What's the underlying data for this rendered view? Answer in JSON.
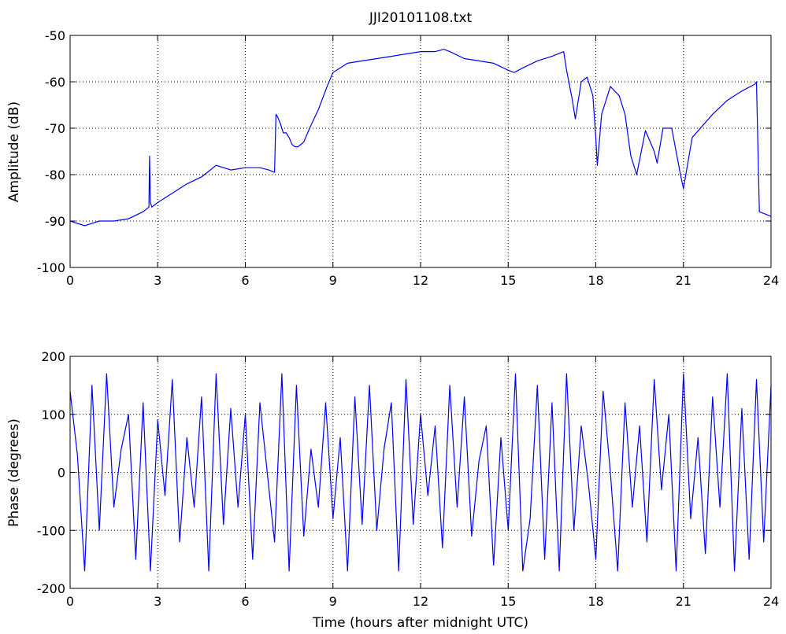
{
  "figure": {
    "title": "JJI20101108.txt",
    "colors": {
      "line": "#0000ff",
      "axes": "#000000",
      "grid": "#000000",
      "background": "#ffffff"
    }
  },
  "chart_data": [
    {
      "type": "line",
      "title": "JJI20101108.txt",
      "xlabel": "",
      "ylabel": "Amplitude (dB)",
      "xlim": [
        0,
        24
      ],
      "ylim": [
        -100,
        -50
      ],
      "xticks": [
        "0",
        "3",
        "6",
        "9",
        "12",
        "15",
        "18",
        "21",
        "24"
      ],
      "yticks": [
        "-100",
        "-90",
        "-80",
        "-70",
        "-60",
        "-50"
      ],
      "grid": true,
      "series": [
        {
          "x": [
            0,
            0.5,
            1,
            1.5,
            2,
            2.5,
            2.7,
            2.72,
            2.75,
            2.8,
            3,
            3.5,
            4,
            4.5,
            4.8,
            5,
            5.5,
            6,
            6.5,
            6.8,
            7.0,
            7.05,
            7.1,
            7.2,
            7.3,
            7.4,
            7.5,
            7.6,
            7.7,
            7.8,
            8.0,
            8.2,
            8.5,
            8.8,
            9,
            9.5,
            10,
            10.5,
            11,
            11.5,
            12,
            12.5,
            12.8,
            13,
            13.5,
            14,
            14.5,
            15,
            15.2,
            15.5,
            16,
            16.5,
            16.7,
            16.9,
            17.0,
            17.2,
            17.3,
            17.5,
            17.7,
            17.9,
            18.0,
            18.05,
            18.2,
            18.5,
            18.8,
            19.0,
            19.2,
            19.4,
            19.7,
            20.0,
            20.1,
            20.3,
            20.6,
            20.9,
            21.0,
            21.3,
            22,
            22.5,
            23,
            23.45,
            23.5,
            23.6,
            24
          ],
          "values": [
            -90,
            -91,
            -90,
            -90,
            -89.5,
            -88,
            -87,
            -76,
            -86,
            -87,
            -86,
            -84,
            -82,
            -80.5,
            -79,
            -78,
            -79,
            -78.5,
            -78.5,
            -79,
            -79.5,
            -67,
            -67.5,
            -69,
            -71,
            -71,
            -72,
            -73.5,
            -74,
            -74,
            -73,
            -70,
            -66,
            -61,
            -58,
            -56,
            -55.5,
            -55,
            -54.5,
            -54,
            -53.5,
            -53.5,
            -53,
            -53.5,
            -55,
            -55.5,
            -56,
            -57.5,
            -58,
            -57,
            -55.5,
            -54.5,
            -54,
            -53.5,
            -57.5,
            -64,
            -68,
            -60,
            -59,
            -63,
            -72,
            -78,
            -67,
            -61,
            -63,
            -67,
            -76,
            -80,
            -70.5,
            -75,
            -77.5,
            -70,
            -70,
            -80,
            -83,
            -72,
            -67,
            -64,
            -62,
            -60.5,
            -60,
            -88,
            -89
          ]
        }
      ]
    },
    {
      "type": "line",
      "title": "",
      "xlabel": "Time (hours after midnight UTC)",
      "ylabel": "Phase (degrees)",
      "xlim": [
        0,
        24
      ],
      "ylim": [
        -200,
        200
      ],
      "xticks": [
        "0",
        "3",
        "6",
        "9",
        "12",
        "15",
        "18",
        "21",
        "24"
      ],
      "yticks": [
        "-200",
        "-100",
        "0",
        "100",
        "200"
      ],
      "grid": true,
      "series": [
        {
          "x": [
            0,
            0.25,
            0.5,
            0.75,
            1,
            1.25,
            1.5,
            1.75,
            2,
            2.25,
            2.5,
            2.75,
            3,
            3.25,
            3.5,
            3.75,
            4,
            4.25,
            4.5,
            4.75,
            5,
            5.25,
            5.5,
            5.75,
            6,
            6.25,
            6.5,
            6.75,
            7,
            7.25,
            7.5,
            7.75,
            8,
            8.25,
            8.5,
            8.75,
            9,
            9.25,
            9.5,
            9.75,
            10,
            10.25,
            10.5,
            10.75,
            11,
            11.25,
            11.5,
            11.75,
            12,
            12.25,
            12.5,
            12.75,
            13,
            13.25,
            13.5,
            13.75,
            14,
            14.25,
            14.5,
            14.75,
            15,
            15.25,
            15.5,
            15.75,
            16,
            16.25,
            16.5,
            16.75,
            17,
            17.25,
            17.5,
            17.75,
            18,
            18.25,
            18.5,
            18.75,
            19,
            19.25,
            19.5,
            19.75,
            20,
            20.25,
            20.5,
            20.75,
            21,
            21.25,
            21.5,
            21.75,
            22,
            22.25,
            22.5,
            22.75,
            23,
            23.25,
            23.5,
            23.75,
            24
          ],
          "values": [
            140,
            30,
            -170,
            150,
            -100,
            170,
            -60,
            40,
            100,
            -150,
            120,
            -170,
            90,
            -40,
            160,
            -120,
            60,
            -60,
            130,
            -170,
            170,
            -90,
            110,
            -60,
            100,
            -150,
            120,
            0,
            -120,
            170,
            -170,
            150,
            -110,
            40,
            -60,
            120,
            -80,
            60,
            -170,
            130,
            -90,
            150,
            -100,
            40,
            120,
            -170,
            160,
            -90,
            100,
            -40,
            80,
            -130,
            150,
            -60,
            130,
            -110,
            20,
            80,
            -160,
            60,
            -100,
            170,
            -170,
            -80,
            150,
            -150,
            120,
            -170,
            170,
            -100,
            80,
            -20,
            -150,
            140,
            0,
            -170,
            120,
            -60,
            80,
            -120,
            160,
            -30,
            100,
            -170,
            170,
            -80,
            60,
            -140,
            130,
            -60,
            170,
            -170,
            110,
            -150,
            160,
            -120,
            150
          ]
        }
      ]
    }
  ]
}
